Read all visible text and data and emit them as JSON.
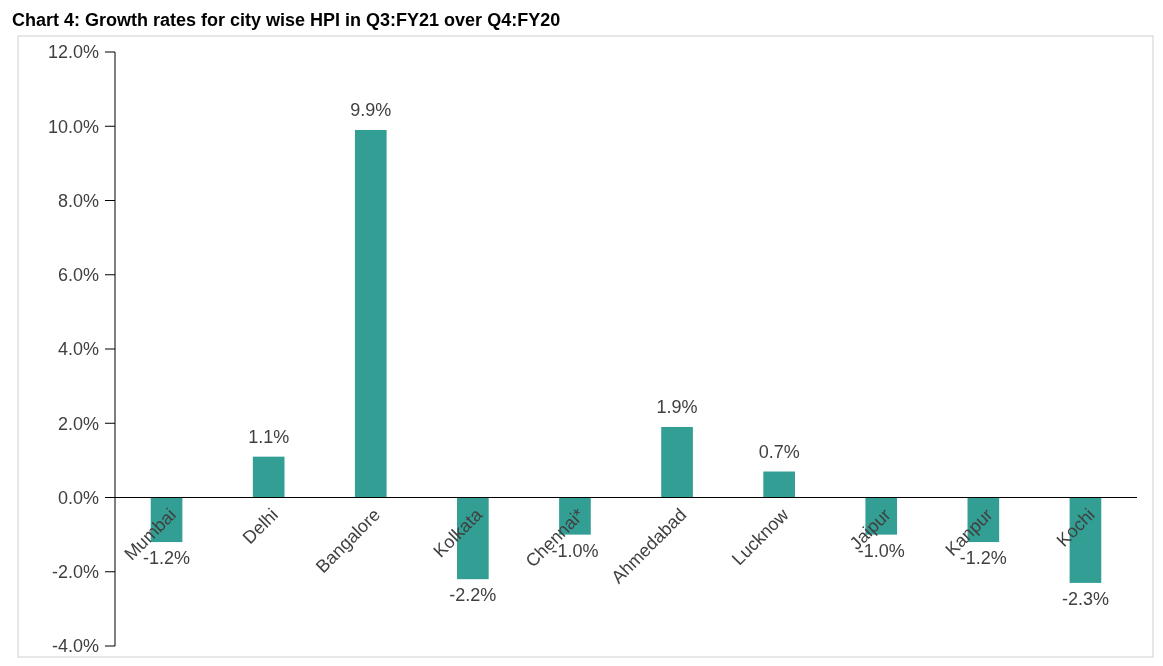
{
  "chart_data": {
    "type": "bar",
    "title": "Chart 4: Growth rates for city wise HPI in Q3:FY21 over Q4:FY20",
    "categories": [
      "Mumbai",
      "Delhi",
      "Bangalore",
      "Kolkata",
      "Chennai*",
      "Ahmedabad",
      "Lucknow",
      "Jaipur",
      "Kanpur",
      "Kochi"
    ],
    "values": [
      -1.2,
      1.1,
      9.9,
      -2.2,
      -1.0,
      1.9,
      0.7,
      -1.0,
      -1.2,
      -2.3
    ],
    "value_labels": [
      "-1.2%",
      "1.1%",
      "9.9%",
      "-2.2%",
      "-1.0%",
      "1.9%",
      "0.7%",
      "-1.0%",
      "-1.2%",
      "-2.3%"
    ],
    "color": "#339e93",
    "ylim": [
      -4,
      12
    ],
    "yticks": [
      {
        "value": -4,
        "label": "-4.0%"
      },
      {
        "value": -2,
        "label": "-2.0%"
      },
      {
        "value": 0,
        "label": "0.0%"
      },
      {
        "value": 2,
        "label": "2.0%"
      },
      {
        "value": 4,
        "label": "4.0%"
      },
      {
        "value": 6,
        "label": "6.0%"
      },
      {
        "value": 8,
        "label": "8.0%"
      },
      {
        "value": 10,
        "label": "10.0%"
      },
      {
        "value": 12,
        "label": "12.0%"
      }
    ],
    "grid": false
  }
}
